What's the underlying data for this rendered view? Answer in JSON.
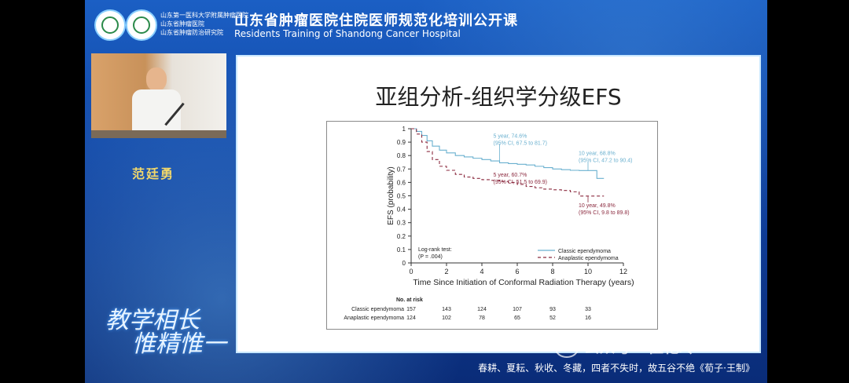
{
  "header": {
    "hospital_lines": [
      "山东第一医科大学附属肿瘤医院",
      "山东省肿瘤医院",
      "山东省肿瘤防治研究院"
    ],
    "title_cn": "山东省肿瘤医院住院医师规范化培训公开课",
    "title_en": "Residents Training of Shandong Cancer Hospital"
  },
  "speaker": {
    "name": "范廷勇"
  },
  "slogan": {
    "line1": "教学相长",
    "line2": "惟精惟一"
  },
  "slide": {
    "title": "亚组分析-组织学分级EFS"
  },
  "chart_data": {
    "type": "line",
    "title": "",
    "xlabel": "Time Since Initiation of Conformal Radiation Therapy (years)",
    "ylabel": "EFS (probability)",
    "xlim": [
      0,
      12
    ],
    "ylim": [
      0,
      1
    ],
    "x_ticks": [
      0,
      2,
      4,
      6,
      8,
      10,
      12
    ],
    "y_ticks": [
      0,
      0.1,
      0.2,
      0.3,
      0.4,
      0.5,
      0.6,
      0.7,
      0.8,
      0.9,
      1
    ],
    "y_tick_labels": [
      "0",
      "0.1",
      "0.2",
      "0.3",
      "0.4",
      "0.5",
      "0.6",
      "0.7",
      "0.8",
      "0.9",
      "1"
    ],
    "series": [
      {
        "name": "Classic ependymoma",
        "color": "#6ab0cf",
        "dash": "solid",
        "x": [
          0,
          0.3,
          0.6,
          0.9,
          1.2,
          1.6,
          2.0,
          2.5,
          3.0,
          3.5,
          4.0,
          4.5,
          5.0,
          5.5,
          6.0,
          6.5,
          7.0,
          7.5,
          8.0,
          8.5,
          9.0,
          9.5,
          10.0,
          10.5,
          10.9
        ],
        "y": [
          1.0,
          0.98,
          0.95,
          0.91,
          0.87,
          0.84,
          0.82,
          0.8,
          0.79,
          0.78,
          0.77,
          0.76,
          0.746,
          0.74,
          0.735,
          0.73,
          0.72,
          0.71,
          0.7,
          0.695,
          0.69,
          0.688,
          0.688,
          0.63,
          0.63
        ]
      },
      {
        "name": "Anaplastic ependymoma",
        "color": "#8b2a3f",
        "dash": "dashed",
        "x": [
          0,
          0.3,
          0.6,
          0.9,
          1.2,
          1.6,
          2.0,
          2.5,
          3.0,
          3.5,
          4.0,
          4.5,
          5.0,
          5.5,
          6.0,
          6.5,
          7.0,
          7.5,
          8.0,
          8.5,
          9.0,
          9.5,
          10.0,
          10.5,
          10.9
        ],
        "y": [
          1.0,
          0.96,
          0.9,
          0.83,
          0.77,
          0.72,
          0.69,
          0.66,
          0.64,
          0.63,
          0.62,
          0.615,
          0.607,
          0.6,
          0.585,
          0.57,
          0.56,
          0.55,
          0.545,
          0.54,
          0.53,
          0.498,
          0.498,
          0.498,
          0.498
        ]
      }
    ],
    "annotations": [
      {
        "text_lines": [
          "5 year, 74.6%",
          "(95% CI, 67.5 to 81.7)"
        ],
        "color": "#6ab0cf",
        "x": 5.0,
        "y": 0.746
      },
      {
        "text_lines": [
          "10 year, 68.8%",
          "(95% CI, 47.2 to 90.4)"
        ],
        "color": "#6ab0cf",
        "x": 10.0,
        "y": 0.688
      },
      {
        "text_lines": [
          "5 year, 60.7%",
          "(95% CI, 51.5 to 69.9)"
        ],
        "color": "#8b2a3f",
        "x": 5.0,
        "y": 0.607
      },
      {
        "text_lines": [
          "10 year, 49.8%",
          "(95% CI, 9.8 to 89.8)"
        ],
        "color": "#8b2a3f",
        "x": 10.0,
        "y": 0.498
      }
    ],
    "logrank": [
      "Log-rank test:",
      "(P = .004)"
    ],
    "legend_position": "bottom-right",
    "risk_table": {
      "header": "No. at risk",
      "times": [
        0,
        2,
        4,
        6,
        8,
        10
      ],
      "rows": [
        {
          "label": "Classic ependymoma",
          "values": [
            157,
            143,
            124,
            107,
            93,
            33
          ]
        },
        {
          "label": "Anaplastic ependymoma",
          "values": [
            124,
            102,
            78,
            65,
            52,
            16
          ]
        }
      ]
    }
  },
  "watermark": {
    "text": "公众号 · 伍艳玲"
  },
  "bottom_quote": "春耕、夏耘、秋收、冬藏，四者不失时，故五谷不绝《荀子·王制》"
}
